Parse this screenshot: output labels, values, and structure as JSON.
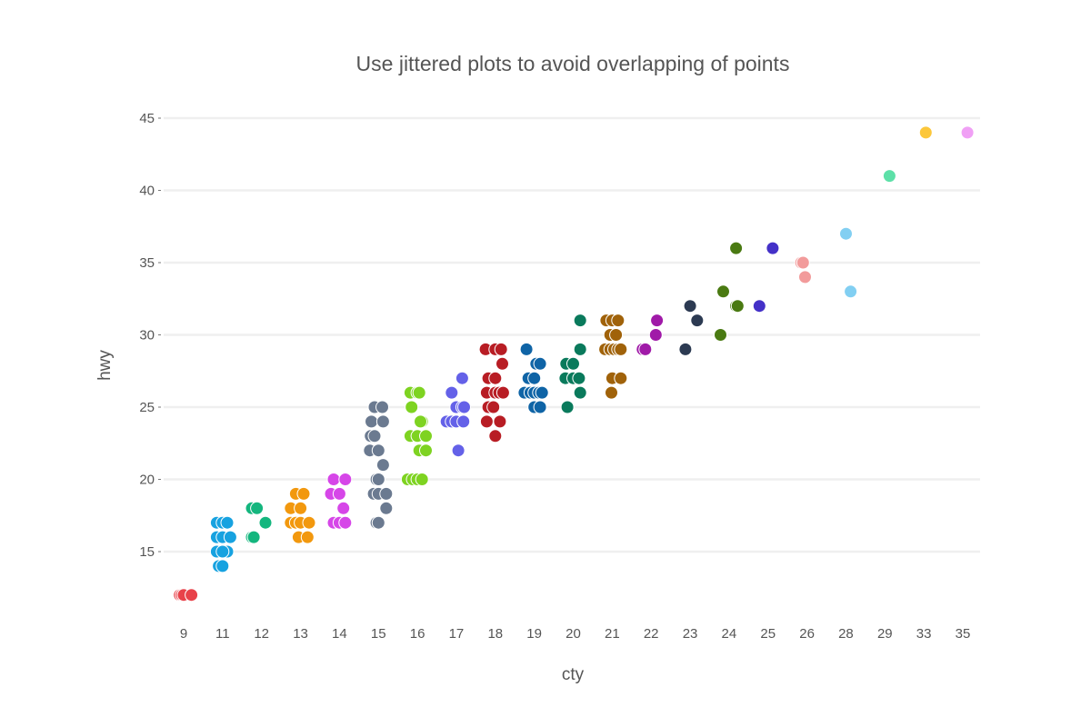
{
  "chart_data": {
    "type": "scatter",
    "title": "Use jittered plots to avoid overlapping of points",
    "xlabel": "cty",
    "ylabel": "hwy",
    "x_axis_kind": "categorical",
    "categories": [
      "9",
      "11",
      "12",
      "13",
      "14",
      "15",
      "16",
      "17",
      "18",
      "19",
      "20",
      "21",
      "22",
      "23",
      "24",
      "25",
      "26",
      "28",
      "29",
      "33",
      "35"
    ],
    "yticks": [
      15,
      20,
      25,
      30,
      35,
      40,
      45
    ],
    "ylim": [
      10.5,
      46.5
    ],
    "grid": true,
    "legend": "none",
    "series": [
      {
        "category": "9",
        "color": "#e8424a",
        "points": [
          [
            -0.1,
            12
          ],
          [
            -0.05,
            12
          ],
          [
            0.0,
            12
          ],
          [
            0.2,
            12
          ]
        ]
      },
      {
        "category": "11",
        "color": "#17a2e0",
        "points": [
          [
            -0.15,
            17
          ],
          [
            0.0,
            17
          ],
          [
            0.12,
            17
          ],
          [
            -0.15,
            16
          ],
          [
            0.0,
            16
          ],
          [
            0.2,
            16
          ],
          [
            -0.15,
            15
          ],
          [
            0.12,
            15
          ],
          [
            0.0,
            15
          ],
          [
            -0.1,
            14
          ],
          [
            0.0,
            14
          ]
        ]
      },
      {
        "category": "12",
        "color": "#14b67e",
        "points": [
          [
            -0.25,
            18
          ],
          [
            -0.12,
            18
          ],
          [
            0.1,
            17
          ],
          [
            -0.25,
            16
          ],
          [
            -0.2,
            16
          ]
        ]
      },
      {
        "category": "13",
        "color": "#f2980e",
        "points": [
          [
            -0.12,
            19
          ],
          [
            0.08,
            19
          ],
          [
            -0.25,
            18
          ],
          [
            0.0,
            18
          ],
          [
            -0.25,
            17
          ],
          [
            -0.12,
            17
          ],
          [
            0.0,
            17
          ],
          [
            0.22,
            17
          ],
          [
            -0.05,
            16
          ],
          [
            0.18,
            16
          ]
        ]
      },
      {
        "category": "14",
        "color": "#d646e8",
        "points": [
          [
            -0.15,
            20
          ],
          [
            0.15,
            20
          ],
          [
            -0.22,
            19
          ],
          [
            0.0,
            19
          ],
          [
            0.1,
            18
          ],
          [
            -0.15,
            17
          ],
          [
            0.0,
            17
          ],
          [
            0.15,
            17
          ]
        ]
      },
      {
        "category": "15",
        "color": "#6b7a90",
        "points": [
          [
            -0.1,
            25
          ],
          [
            0.1,
            25
          ],
          [
            -0.18,
            24
          ],
          [
            0.12,
            24
          ],
          [
            -0.2,
            23
          ],
          [
            -0.1,
            23
          ],
          [
            -0.22,
            22
          ],
          [
            0.0,
            22
          ],
          [
            0.12,
            21
          ],
          [
            -0.05,
            20
          ],
          [
            0.0,
            20
          ],
          [
            -0.12,
            19
          ],
          [
            0.0,
            19
          ],
          [
            0.2,
            19
          ],
          [
            0.2,
            18
          ],
          [
            -0.05,
            17
          ],
          [
            0.0,
            17
          ]
        ]
      },
      {
        "category": "16",
        "color": "#7ed321",
        "points": [
          [
            -0.18,
            26
          ],
          [
            0.0,
            26
          ],
          [
            0.05,
            26
          ],
          [
            -0.15,
            25
          ],
          [
            0.12,
            24
          ],
          [
            0.08,
            24
          ],
          [
            -0.18,
            23
          ],
          [
            0.0,
            23
          ],
          [
            0.22,
            23
          ],
          [
            0.05,
            22
          ],
          [
            0.22,
            22
          ],
          [
            -0.25,
            20
          ],
          [
            -0.12,
            20
          ],
          [
            0.0,
            20
          ],
          [
            0.12,
            20
          ]
        ]
      },
      {
        "category": "17",
        "color": "#6461e8",
        "points": [
          [
            0.15,
            27
          ],
          [
            -0.12,
            26
          ],
          [
            0.0,
            25
          ],
          [
            0.15,
            25
          ],
          [
            0.2,
            25
          ],
          [
            -0.25,
            24
          ],
          [
            -0.12,
            24
          ],
          [
            0.0,
            24
          ],
          [
            0.18,
            24
          ],
          [
            0.05,
            22
          ]
        ]
      },
      {
        "category": "18",
        "color": "#b81d24",
        "points": [
          [
            -0.25,
            29
          ],
          [
            0.0,
            29
          ],
          [
            0.15,
            29
          ],
          [
            0.18,
            28
          ],
          [
            -0.18,
            27
          ],
          [
            0.0,
            27
          ],
          [
            -0.22,
            26
          ],
          [
            0.0,
            26
          ],
          [
            0.1,
            26
          ],
          [
            0.2,
            26
          ],
          [
            -0.18,
            25
          ],
          [
            -0.05,
            25
          ],
          [
            -0.22,
            24
          ],
          [
            0.12,
            24
          ],
          [
            0.0,
            23
          ]
        ]
      },
      {
        "category": "19",
        "color": "#0f64a6",
        "points": [
          [
            -0.2,
            29
          ],
          [
            0.05,
            28
          ],
          [
            0.15,
            28
          ],
          [
            -0.15,
            27
          ],
          [
            0.0,
            27
          ],
          [
            -0.25,
            26
          ],
          [
            -0.1,
            26
          ],
          [
            0.0,
            26
          ],
          [
            0.12,
            26
          ],
          [
            0.2,
            26
          ],
          [
            0.0,
            25
          ],
          [
            0.15,
            25
          ]
        ]
      },
      {
        "category": "20",
        "color": "#0a7a5c",
        "points": [
          [
            0.18,
            31
          ],
          [
            -0.18,
            28
          ],
          [
            0.0,
            28
          ],
          [
            0.18,
            29
          ],
          [
            -0.2,
            27
          ],
          [
            0.0,
            27
          ],
          [
            0.15,
            27
          ],
          [
            0.18,
            26
          ],
          [
            -0.15,
            25
          ]
        ]
      },
      {
        "category": "21",
        "color": "#a0620a",
        "points": [
          [
            -0.15,
            31
          ],
          [
            0.0,
            31
          ],
          [
            0.15,
            31
          ],
          [
            -0.05,
            30
          ],
          [
            0.1,
            30
          ],
          [
            -0.18,
            29
          ],
          [
            -0.05,
            29
          ],
          [
            0.05,
            29
          ],
          [
            0.15,
            29
          ],
          [
            0.22,
            29
          ],
          [
            0.0,
            27
          ],
          [
            0.22,
            27
          ],
          [
            -0.02,
            26
          ]
        ]
      },
      {
        "category": "22",
        "color": "#a01aa8",
        "points": [
          [
            0.15,
            31
          ],
          [
            0.12,
            30
          ],
          [
            -0.22,
            29
          ],
          [
            -0.15,
            29
          ]
        ]
      },
      {
        "category": "23",
        "color": "#2c3a52",
        "points": [
          [
            0.0,
            32
          ],
          [
            0.18,
            31
          ],
          [
            -0.12,
            29
          ]
        ]
      },
      {
        "category": "24",
        "color": "#4a7a12",
        "points": [
          [
            0.18,
            36
          ],
          [
            -0.15,
            33
          ],
          [
            0.18,
            32
          ],
          [
            0.22,
            32
          ],
          [
            -0.22,
            30
          ]
        ]
      },
      {
        "category": "25",
        "color": "#4431c8",
        "points": [
          [
            0.12,
            36
          ],
          [
            -0.22,
            32
          ]
        ]
      },
      {
        "category": "26",
        "color": "#f29b9b",
        "points": [
          [
            -0.15,
            35
          ],
          [
            -0.1,
            35
          ],
          [
            -0.05,
            34
          ]
        ]
      },
      {
        "category": "28",
        "color": "#82cff2",
        "points": [
          [
            0.0,
            37
          ],
          [
            0.12,
            33
          ]
        ]
      },
      {
        "category": "29",
        "color": "#5de0a8",
        "points": [
          [
            0.12,
            41
          ]
        ]
      },
      {
        "category": "33",
        "color": "#fcc73a",
        "points": [
          [
            0.05,
            44
          ]
        ]
      },
      {
        "category": "35",
        "color": "#f0a0f5",
        "points": [
          [
            0.12,
            44
          ]
        ]
      }
    ]
  }
}
